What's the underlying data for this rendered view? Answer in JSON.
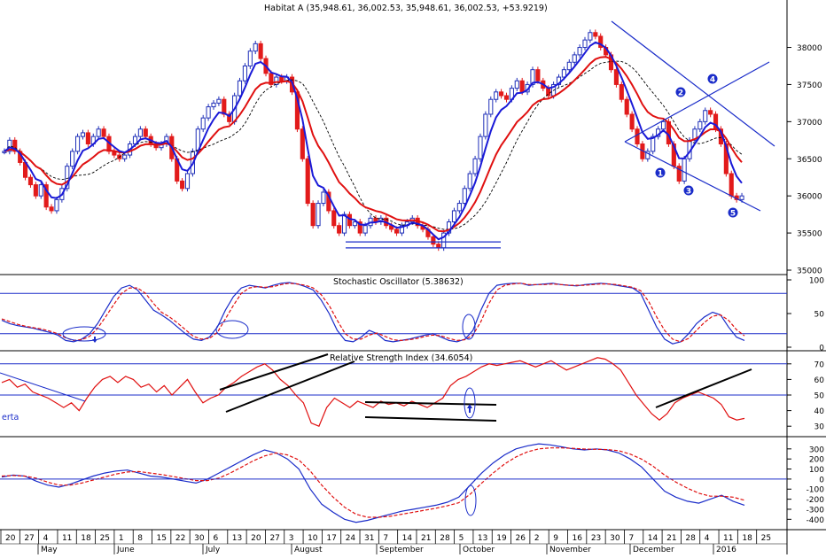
{
  "chart_data": [
    {
      "type": "candlestick",
      "title": "Habitat A (35,948.61, 36,002.53, 35,948.61, 36,002.53, +53.9219)",
      "ylim": [
        35000,
        38400
      ],
      "yticks": [
        38000,
        37500,
        37000,
        36500,
        36000,
        35500,
        35000
      ],
      "colors": {
        "up": "#1f2fb8",
        "down": "#e21b1b",
        "ma_fast": "#1a1ad8",
        "ma_slow": "#e01010",
        "ma_dashed": "#000000",
        "trendline": "#1a2cc9"
      },
      "series": [
        {
          "name": "",
          "style": "candles",
          "closes": [
            36600,
            36750,
            36600,
            36450,
            36250,
            36150,
            36000,
            36150,
            35850,
            35800,
            35950,
            36100,
            36400,
            36600,
            36800,
            36850,
            36700,
            36800,
            36900,
            36800,
            36600,
            36550,
            36500,
            36550,
            36700,
            36800,
            36900,
            36800,
            36700,
            36650,
            36700,
            36800,
            36500,
            36200,
            36100,
            36300,
            36600,
            36900,
            37050,
            37200,
            37250,
            37300,
            37100,
            37000,
            37350,
            37550,
            37750,
            37950,
            38050,
            37850,
            37650,
            37500,
            37600,
            37550,
            37600,
            37400,
            36900,
            36500,
            35900,
            35600,
            35900,
            36050,
            35800,
            35600,
            35500,
            35750,
            35600,
            35650,
            35500,
            35600,
            35700,
            35650,
            35700,
            35600,
            35550,
            35500,
            35600,
            35650,
            35700,
            35600,
            35550,
            35450,
            35350,
            35300,
            35500,
            35650,
            35800,
            35900,
            36100,
            36300,
            36500,
            36800,
            37100,
            37300,
            37400,
            37350,
            37300,
            37450,
            37550,
            37400,
            37500,
            37700,
            37550,
            37450,
            37350,
            37500,
            37600,
            37700,
            37800,
            37900,
            38000,
            38100,
            38200,
            38150,
            38000,
            37900,
            37700,
            37500,
            37300,
            37100,
            36900,
            36700,
            36500,
            36600,
            36800,
            36900,
            37000,
            36700,
            36400,
            36200,
            36500,
            36750,
            36900,
            37000,
            37150,
            37100,
            36900,
            36700,
            36300,
            36000,
            35950,
            36000
          ]
        }
      ]
    },
    {
      "type": "line",
      "title": "Stochastic Oscillator (5.38632)",
      "ylim": [
        0,
        100
      ],
      "yticks": [
        100,
        50,
        0
      ],
      "levels": [
        80,
        20
      ],
      "series": [
        {
          "name": "",
          "values": [
            40,
            35,
            32,
            30,
            28,
            25,
            22,
            18,
            10,
            8,
            12,
            20,
            35,
            55,
            75,
            88,
            92,
            85,
            70,
            55,
            48,
            40,
            30,
            20,
            12,
            10,
            15,
            30,
            55,
            75,
            88,
            92,
            90,
            88,
            92,
            95,
            96,
            94,
            90,
            85,
            70,
            50,
            25,
            10,
            8,
            15,
            25,
            20,
            10,
            8,
            10,
            12,
            15,
            18,
            20,
            15,
            10,
            8,
            12,
            25,
            55,
            80,
            92,
            94,
            95,
            95,
            92,
            93,
            94,
            95,
            93,
            92,
            91,
            93,
            94,
            95,
            94,
            92,
            90,
            88,
            80,
            55,
            30,
            12,
            5,
            8,
            20,
            35,
            45,
            52,
            48,
            30,
            15,
            10
          ]
        },
        {
          "name": "",
          "values": [
            42,
            38,
            34,
            31,
            29,
            27,
            24,
            20,
            14,
            10,
            11,
            16,
            28,
            45,
            63,
            80,
            88,
            88,
            80,
            65,
            52,
            45,
            36,
            26,
            16,
            12,
            13,
            22,
            42,
            62,
            80,
            88,
            90,
            89,
            90,
            93,
            95,
            94,
            92,
            88,
            78,
            62,
            40,
            20,
            12,
            12,
            18,
            21,
            16,
            11,
            10,
            11,
            13,
            16,
            18,
            17,
            13,
            10,
            11,
            18,
            38,
            65,
            85,
            92,
            94,
            95,
            93,
            93,
            93,
            94,
            93,
            92,
            92,
            92,
            93,
            94,
            94,
            93,
            91,
            89,
            84,
            68,
            45,
            25,
            12,
            8,
            13,
            25,
            37,
            46,
            48,
            40,
            26,
            17
          ]
        }
      ]
    },
    {
      "type": "line",
      "title": "Relative Strength Index (34.6054)",
      "ylim": [
        25,
        75
      ],
      "yticks": [
        70,
        60,
        50,
        40,
        30
      ],
      "levels": [
        70,
        50
      ],
      "legend_fragment": "erta",
      "series": [
        {
          "name": "",
          "values": [
            58,
            60,
            55,
            57,
            52,
            50,
            48,
            45,
            42,
            45,
            40,
            48,
            55,
            60,
            62,
            58,
            62,
            60,
            55,
            57,
            52,
            56,
            50,
            55,
            60,
            52,
            45,
            48,
            50,
            55,
            58,
            62,
            65,
            68,
            70,
            66,
            60,
            56,
            50,
            45,
            32,
            30,
            42,
            48,
            45,
            42,
            46,
            44,
            42,
            46,
            44,
            45,
            43,
            46,
            44,
            42,
            45,
            48,
            56,
            60,
            62,
            65,
            68,
            70,
            69,
            70,
            71,
            72,
            70,
            68,
            70,
            72,
            69,
            66,
            68,
            70,
            72,
            74,
            73,
            70,
            66,
            58,
            50,
            44,
            38,
            34,
            38,
            45,
            48,
            50,
            52,
            50,
            48,
            44,
            36,
            34,
            35
          ]
        }
      ]
    },
    {
      "type": "line",
      "title": "",
      "ylim": [
        -450,
        360
      ],
      "yticks": [
        300,
        200,
        100,
        0,
        -100,
        -200,
        -300,
        -400
      ],
      "series": [
        {
          "name": "",
          "values": [
            20,
            40,
            30,
            -20,
            -60,
            -80,
            -50,
            -10,
            30,
            60,
            80,
            90,
            60,
            30,
            20,
            0,
            -20,
            -40,
            0,
            60,
            120,
            180,
            240,
            290,
            260,
            200,
            100,
            -100,
            -250,
            -330,
            -400,
            -430,
            -410,
            -380,
            -350,
            -320,
            -300,
            -280,
            -260,
            -230,
            -180,
            -60,
            60,
            160,
            240,
            300,
            330,
            350,
            340,
            320,
            300,
            290,
            300,
            290,
            260,
            200,
            120,
            0,
            -120,
            -180,
            -220,
            -240,
            -200,
            -160,
            -220,
            -260
          ]
        },
        {
          "name": "",
          "values": [
            30,
            35,
            30,
            10,
            -30,
            -60,
            -60,
            -40,
            -10,
            20,
            50,
            70,
            75,
            60,
            45,
            25,
            5,
            -15,
            -15,
            10,
            60,
            120,
            180,
            230,
            260,
            240,
            190,
            80,
            -60,
            -180,
            -280,
            -350,
            -380,
            -380,
            -370,
            -350,
            -330,
            -310,
            -290,
            -265,
            -235,
            -150,
            -40,
            60,
            150,
            220,
            270,
            300,
            310,
            310,
            305,
            298,
            296,
            293,
            282,
            248,
            198,
            128,
            40,
            -30,
            -90,
            -140,
            -170,
            -170,
            -180,
            -210
          ]
        }
      ]
    }
  ],
  "x_axis": {
    "day_ticks": [
      "20",
      "27",
      "4",
      "11",
      "18",
      "25",
      "1",
      "8",
      "15",
      "22",
      "30",
      "6",
      "13",
      "20",
      "27",
      "3",
      "10",
      "17",
      "24",
      "31",
      "7",
      "14",
      "21",
      "28",
      "5",
      "13",
      "19",
      "26",
      "2",
      "9",
      "16",
      "23",
      "30",
      "7",
      "14",
      "21",
      "28",
      "4",
      "11",
      "18",
      "25"
    ],
    "months": [
      "May",
      "June",
      "July",
      "August",
      "September",
      "October",
      "November",
      "December",
      "2016"
    ]
  },
  "annotations": {
    "wave_labels": [
      "1",
      "2",
      "3",
      "4",
      "5"
    ]
  }
}
